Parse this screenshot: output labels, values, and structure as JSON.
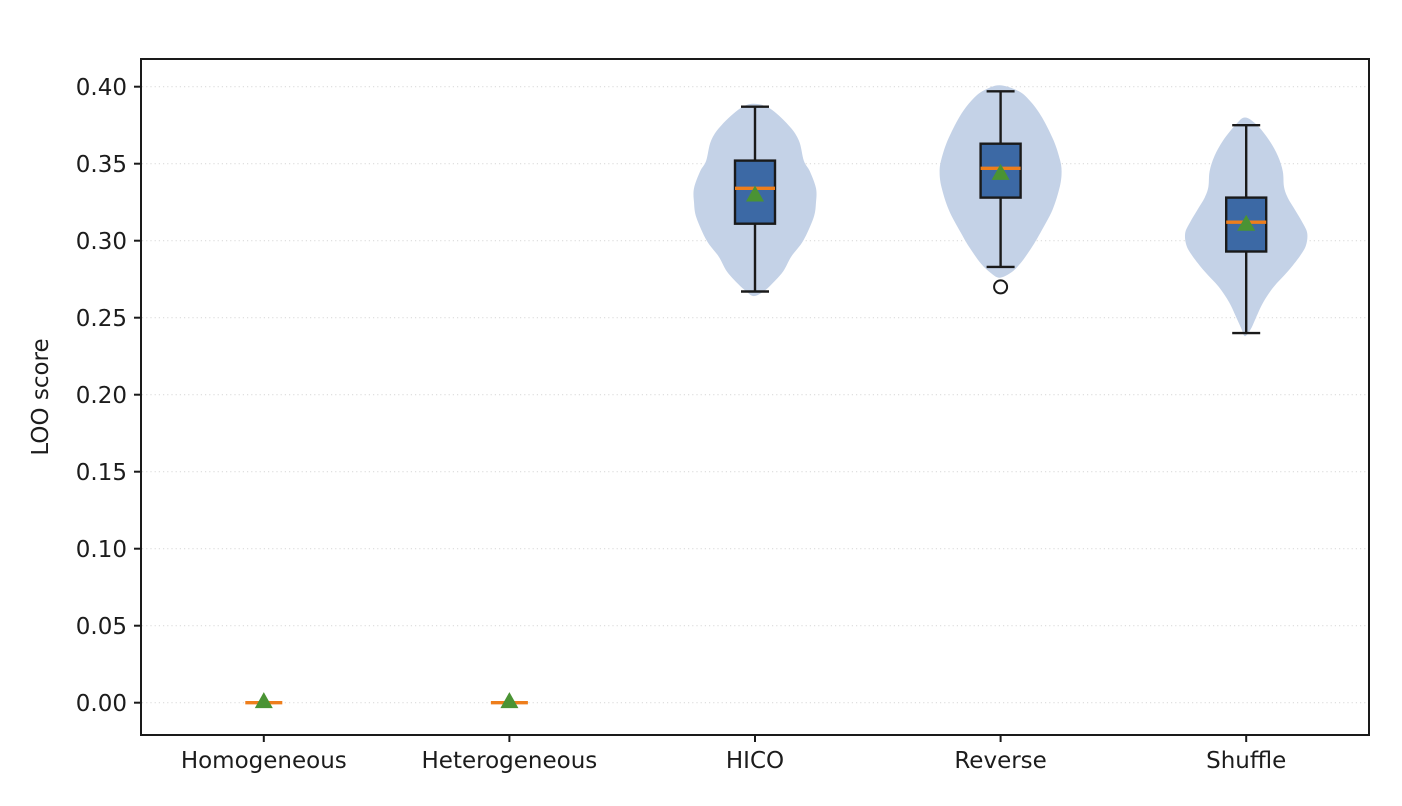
{
  "figure": {
    "background": "#ffffff"
  },
  "chart_data": {
    "type": "violin+box",
    "title": "",
    "xlabel": "",
    "ylabel": "LOO score",
    "ylim": [
      -0.021,
      0.418
    ],
    "grid": {
      "axis": "y",
      "style": "dotted",
      "color": "#dcdcdc"
    },
    "legend": "none",
    "yticks": {
      "values": [
        0.0,
        0.05,
        0.1,
        0.15,
        0.2,
        0.25,
        0.3,
        0.35,
        0.4
      ],
      "labels": [
        "0.00",
        "0.05",
        "0.10",
        "0.15",
        "0.20",
        "0.25",
        "0.30",
        "0.35",
        "0.40"
      ]
    },
    "categories": [
      "Homogeneous",
      "Heterogeneous",
      "HICO",
      "Reverse",
      "Shuffle"
    ],
    "series": [
      {
        "name": "Homogeneous",
        "median": 0.0,
        "mean": 0.001,
        "q1": 0.0,
        "q3": 0.0,
        "whisker_low": 0.0,
        "whisker_high": 0.0,
        "outliers": [],
        "violin_profile": []
      },
      {
        "name": "Heterogeneous",
        "median": 0.0,
        "mean": 0.001,
        "q1": 0.0,
        "q3": 0.0,
        "whisker_low": 0.0,
        "whisker_high": 0.0,
        "outliers": [],
        "violin_profile": []
      },
      {
        "name": "HICO",
        "median": 0.334,
        "mean": 0.33,
        "q1": 0.311,
        "q3": 0.352,
        "whisker_low": 0.267,
        "whisker_high": 0.387,
        "outliers": [],
        "violin_profile": [
          [
            0.389,
            0.02
          ],
          [
            0.386,
            0.24
          ],
          [
            0.375,
            0.55
          ],
          [
            0.365,
            0.72
          ],
          [
            0.352,
            0.8
          ],
          [
            0.345,
            0.9
          ],
          [
            0.334,
            1.0
          ],
          [
            0.325,
            1.0
          ],
          [
            0.315,
            0.96
          ],
          [
            0.3,
            0.79
          ],
          [
            0.29,
            0.6
          ],
          [
            0.28,
            0.46
          ],
          [
            0.272,
            0.28
          ],
          [
            0.267,
            0.14
          ],
          [
            0.264,
            0.02
          ]
        ]
      },
      {
        "name": "Reverse",
        "median": 0.347,
        "mean": 0.344,
        "q1": 0.328,
        "q3": 0.363,
        "whisker_low": 0.283,
        "whisker_high": 0.397,
        "outliers": [
          0.27
        ],
        "violin_profile": [
          [
            0.401,
            0.02
          ],
          [
            0.397,
            0.3
          ],
          [
            0.39,
            0.5
          ],
          [
            0.38,
            0.68
          ],
          [
            0.365,
            0.87
          ],
          [
            0.353,
            0.97
          ],
          [
            0.345,
            1.0
          ],
          [
            0.335,
            0.97
          ],
          [
            0.32,
            0.85
          ],
          [
            0.305,
            0.65
          ],
          [
            0.295,
            0.5
          ],
          [
            0.285,
            0.32
          ],
          [
            0.279,
            0.16
          ],
          [
            0.276,
            0.02
          ]
        ]
      },
      {
        "name": "Shuffle",
        "median": 0.312,
        "mean": 0.311,
        "q1": 0.293,
        "q3": 0.328,
        "whisker_low": 0.24,
        "whisker_high": 0.375,
        "outliers": [],
        "violin_profile": [
          [
            0.38,
            0.02
          ],
          [
            0.375,
            0.18
          ],
          [
            0.365,
            0.38
          ],
          [
            0.355,
            0.52
          ],
          [
            0.345,
            0.6
          ],
          [
            0.335,
            0.62
          ],
          [
            0.328,
            0.68
          ],
          [
            0.32,
            0.8
          ],
          [
            0.312,
            0.92
          ],
          [
            0.305,
            1.0
          ],
          [
            0.297,
            0.98
          ],
          [
            0.29,
            0.88
          ],
          [
            0.28,
            0.68
          ],
          [
            0.27,
            0.45
          ],
          [
            0.26,
            0.28
          ],
          [
            0.25,
            0.16
          ],
          [
            0.243,
            0.08
          ],
          [
            0.238,
            0.02
          ]
        ]
      }
    ],
    "colors": {
      "violin_fill": "#c4d2e7",
      "box_fill": "#3c69a5",
      "box_edge": "#1a1a1a",
      "whisker": "#1a1a1a",
      "median": "#ee7e1c",
      "mean_marker": "#4a9334",
      "outlier_stroke": "#1a1a1a",
      "outlier_fill": "#ffffff",
      "grid": "#dcdcdc",
      "spine": "#1a1a1a",
      "tick_label": "#1c1c1c"
    }
  }
}
